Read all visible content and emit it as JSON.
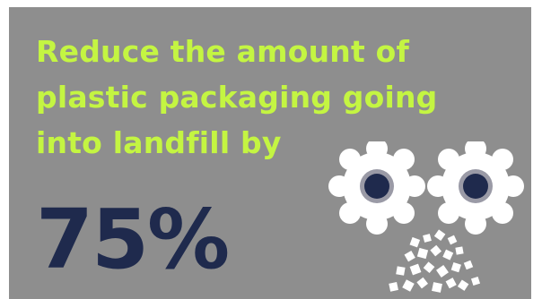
{
  "headline": {
    "line1": "Reduce the amount of",
    "line2": "plastic packaging going",
    "line3": "into landfill by"
  },
  "stat": {
    "value": "75%"
  },
  "colors": {
    "panel_background": "#8e8e8e",
    "headline_text": "#c4f542",
    "stat_text": "#1f2a4d",
    "gear_fill": "#ffffff",
    "gear_hub_ring": "#9a9aa6",
    "gear_hub_center": "#1f2a4d",
    "flakes": "#ffffff"
  },
  "graphic": {
    "icon": "plastic-shredder-gears-icon"
  }
}
